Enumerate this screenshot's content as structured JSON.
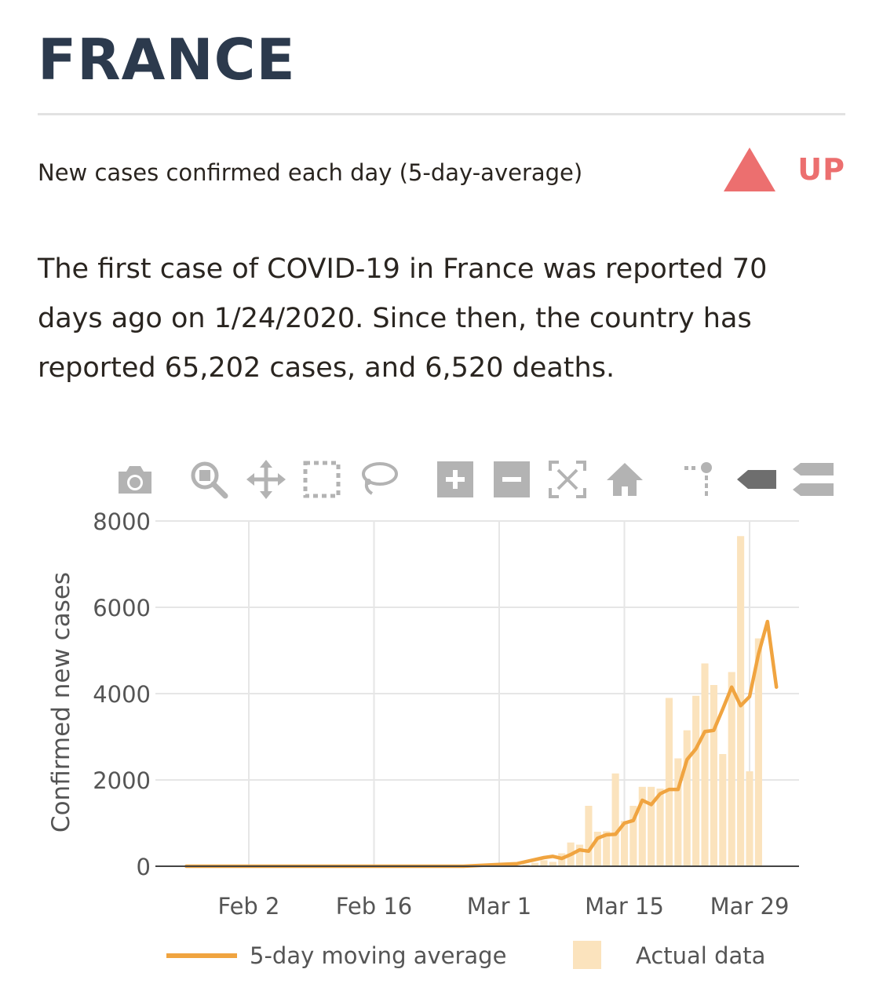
{
  "header": {
    "country": "FRANCE",
    "subtitle": "New cases confirmed each day (5-day-average)",
    "trend_label": "UP",
    "trend_color": "#ec6f6f",
    "title_color": "#2c3a4d"
  },
  "summary": {
    "text": "The first case of COVID-19 in France was reported 70 days ago on 1/24/2020. Since then, the country has reported 65,202 cases, and 6,520 deaths."
  },
  "toolbar": {
    "icons": [
      "camera-icon",
      "zoom-icon",
      "pan-icon",
      "box-select-icon",
      "lasso-icon",
      "zoom-in-icon",
      "zoom-out-icon",
      "autoscale-icon",
      "reset-axes-icon",
      "spike-lines-icon",
      "hover-closest-icon",
      "hover-compare-icon"
    ]
  },
  "chart_data": {
    "type": "bar",
    "x_start": "2020-01-24",
    "x_end": "2020-04-02",
    "x_ticks": [
      "Feb 2",
      "Feb 16",
      "Mar 1",
      "Mar 15",
      "Mar 29"
    ],
    "x_tick_dates": [
      "2020-02-02",
      "2020-02-16",
      "2020-03-01",
      "2020-03-15",
      "2020-03-29"
    ],
    "ylabel": "Confirmed new cases",
    "y_ticks": [
      0,
      2000,
      4000,
      6000,
      8000
    ],
    "ylim": [
      0,
      8000
    ],
    "grid": true,
    "legend_placement": "bottom",
    "colors": {
      "line": "#f0a440",
      "bars": "#fbe3bd"
    },
    "series": [
      {
        "name": "Actual data",
        "type": "bar",
        "x_start": "2020-03-04",
        "values": [
          40,
          80,
          140,
          100,
          300,
          550,
          500,
          1400,
          800,
          810,
          2150,
          1050,
          1400,
          1840,
          1840,
          1800,
          3900,
          2500,
          3150,
          3950,
          4700,
          4200,
          2600,
          4500,
          7650,
          2200,
          5280
        ]
      },
      {
        "name": "5-day moving average",
        "type": "line",
        "x": [
          "2020-01-26",
          "2020-02-26",
          "2020-03-01",
          "2020-03-03",
          "2020-03-06",
          "2020-03-07",
          "2020-03-08",
          "2020-03-09",
          "2020-03-10",
          "2020-03-11",
          "2020-03-12",
          "2020-03-13",
          "2020-03-14",
          "2020-03-15",
          "2020-03-16",
          "2020-03-17",
          "2020-03-18",
          "2020-03-19",
          "2020-03-20",
          "2020-03-21",
          "2020-03-22",
          "2020-03-23",
          "2020-03-24",
          "2020-03-25",
          "2020-03-26",
          "2020-03-27",
          "2020-03-28",
          "2020-03-29",
          "2020-03-30",
          "2020-03-31",
          "2020-04-01"
        ],
        "values": [
          0,
          0,
          40,
          60,
          200,
          230,
          180,
          270,
          380,
          350,
          650,
          730,
          740,
          1000,
          1060,
          1530,
          1430,
          1680,
          1780,
          1780,
          2470,
          2720,
          3120,
          3150,
          3640,
          4150,
          3720,
          3930,
          4920,
          5670,
          4150
        ]
      }
    ]
  },
  "legend": {
    "line_label": "5-day moving average",
    "bar_label": "Actual data"
  }
}
